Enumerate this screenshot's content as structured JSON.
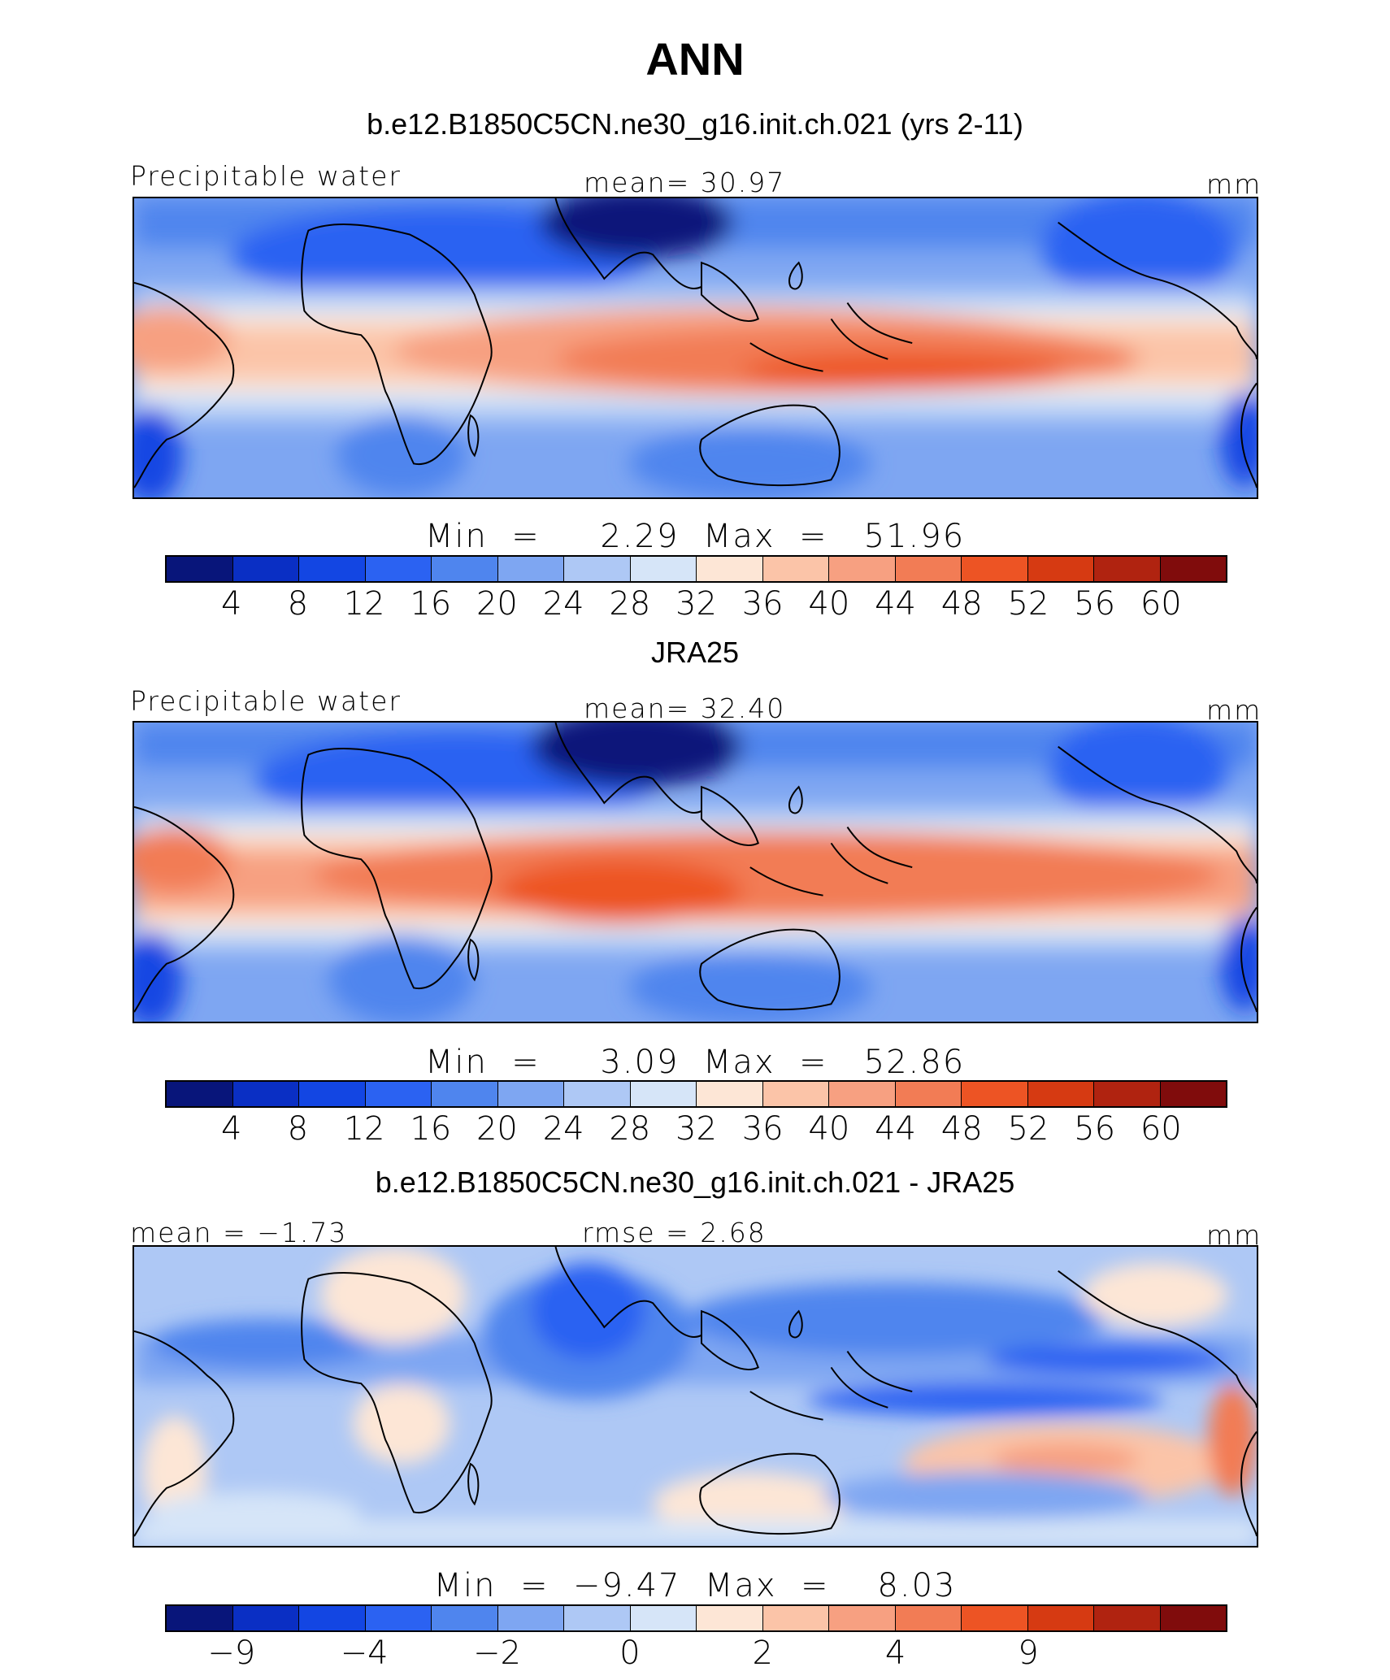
{
  "title": "ANN",
  "colors": [
    "#08157a",
    "#0a2fc4",
    "#1346e3",
    "#2b62f2",
    "#4f85ee",
    "#7ea6f2",
    "#aec8f5",
    "#d6e5f8",
    "#fde6d6",
    "#fbc4a8",
    "#f7a081",
    "#f27c55",
    "#ed5424",
    "#d63a12",
    "#b02310",
    "#800c0c"
  ],
  "panels": [
    {
      "title": "b.e12.B1850C5CN.ne30_g16.init.ch.021 (yrs 2-11)",
      "left_label": "Precipitable water",
      "center_label": "mean=  30.97",
      "units": "mm",
      "min_label": "Min  =",
      "min_value": "2.29",
      "max_label": "Max  =",
      "max_value": "51.96",
      "ticks": [
        "4",
        "8",
        "12",
        "16",
        "20",
        "24",
        "28",
        "32",
        "36",
        "40",
        "44",
        "48",
        "52",
        "56",
        "60"
      ]
    },
    {
      "title": "JRA25",
      "left_label": "Precipitable water",
      "center_label": "mean=  32.40",
      "units": "mm",
      "min_label": "Min  =",
      "min_value": "3.09",
      "max_label": "Max  =",
      "max_value": "52.86",
      "ticks": [
        "4",
        "8",
        "12",
        "16",
        "20",
        "24",
        "28",
        "32",
        "36",
        "40",
        "44",
        "48",
        "52",
        "56",
        "60"
      ]
    },
    {
      "title": "b.e12.B1850C5CN.ne30_g16.init.ch.021 - JRA25",
      "left_label": "mean =  −1.73",
      "center_label": "rmse =    2.68",
      "units": "mm",
      "min_label": "Min  =",
      "min_value": "−9.47",
      "max_label": "Max  =",
      "max_value": "8.03",
      "ticks": [
        "−9",
        "−4",
        "−2",
        "0",
        "2",
        "4",
        "9"
      ],
      "tick_positions": [
        1,
        3,
        5,
        7,
        9,
        11,
        13
      ]
    }
  ]
}
